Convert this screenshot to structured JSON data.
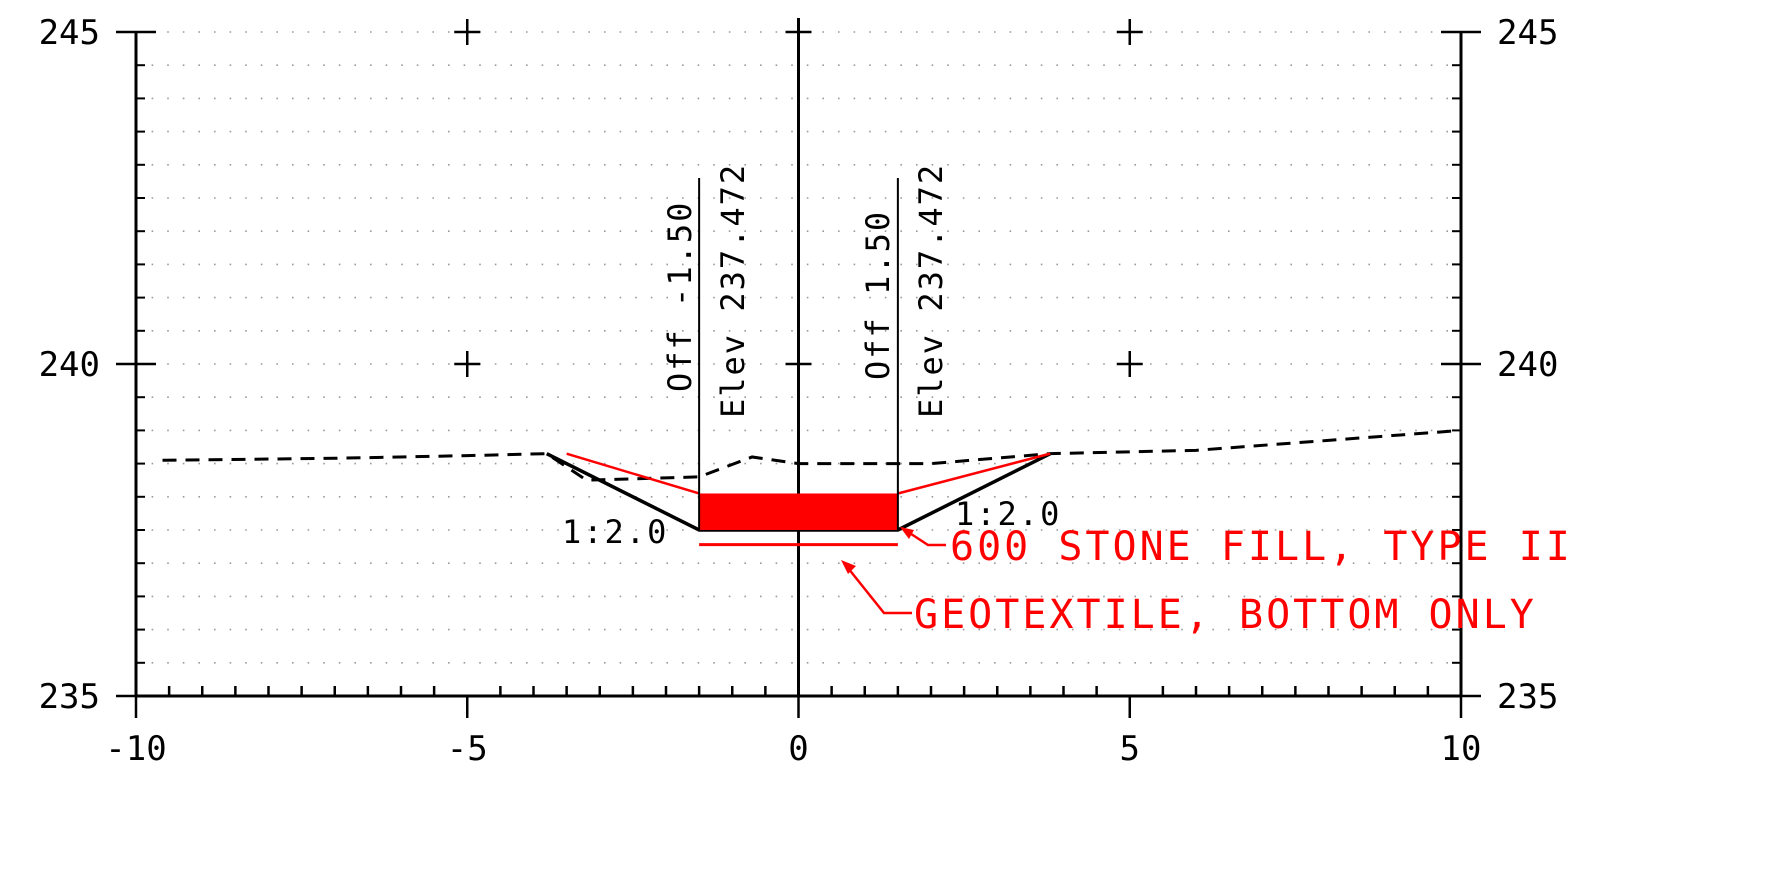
{
  "diagram": {
    "type": "cross-section",
    "x_range": [
      -10,
      10
    ],
    "y_range": [
      235,
      245
    ],
    "x_ticks": [
      "-10",
      "-5",
      "0",
      "5",
      "10"
    ],
    "y_ticks": [
      "235",
      "240",
      "245"
    ],
    "grid": true
  },
  "offsets": {
    "left": {
      "offset": "Off -1.50",
      "elev": "Elev 237.472"
    },
    "right": {
      "offset": "Off 1.50",
      "elev": "Elev 237.472"
    }
  },
  "slopes": {
    "left": "1:2.0",
    "right": "1:2.0"
  },
  "callouts": {
    "stone_fill": "600 STONE FILL, TYPE II",
    "geotextile": "GEOTEXTILE, BOTTOM ONLY"
  },
  "profile": {
    "existing_ground": [
      [
        -9.6,
        238.55
      ],
      [
        -7,
        238.58
      ],
      [
        -5,
        238.62
      ],
      [
        -3.8,
        238.65
      ],
      [
        -3.2,
        238.25
      ],
      [
        -1.5,
        238.3
      ],
      [
        -0.7,
        238.6
      ],
      [
        0,
        238.5
      ],
      [
        2,
        238.5
      ],
      [
        3.8,
        238.65
      ],
      [
        6,
        238.7
      ],
      [
        8,
        238.85
      ],
      [
        10,
        239.0
      ]
    ],
    "ditch": [
      [
        -3.8,
        238.65
      ],
      [
        -1.5,
        237.5
      ],
      [
        1.5,
        237.5
      ],
      [
        3.8,
        238.65
      ]
    ],
    "stone_fill": {
      "x": [
        -1.5,
        1.5
      ],
      "y": [
        237.5,
        238.05
      ]
    },
    "geotextile": {
      "x": [
        -1.5,
        1.5
      ],
      "y": 237.28
    },
    "colors": {
      "ground": "#000000",
      "design": "#ff0000"
    }
  }
}
